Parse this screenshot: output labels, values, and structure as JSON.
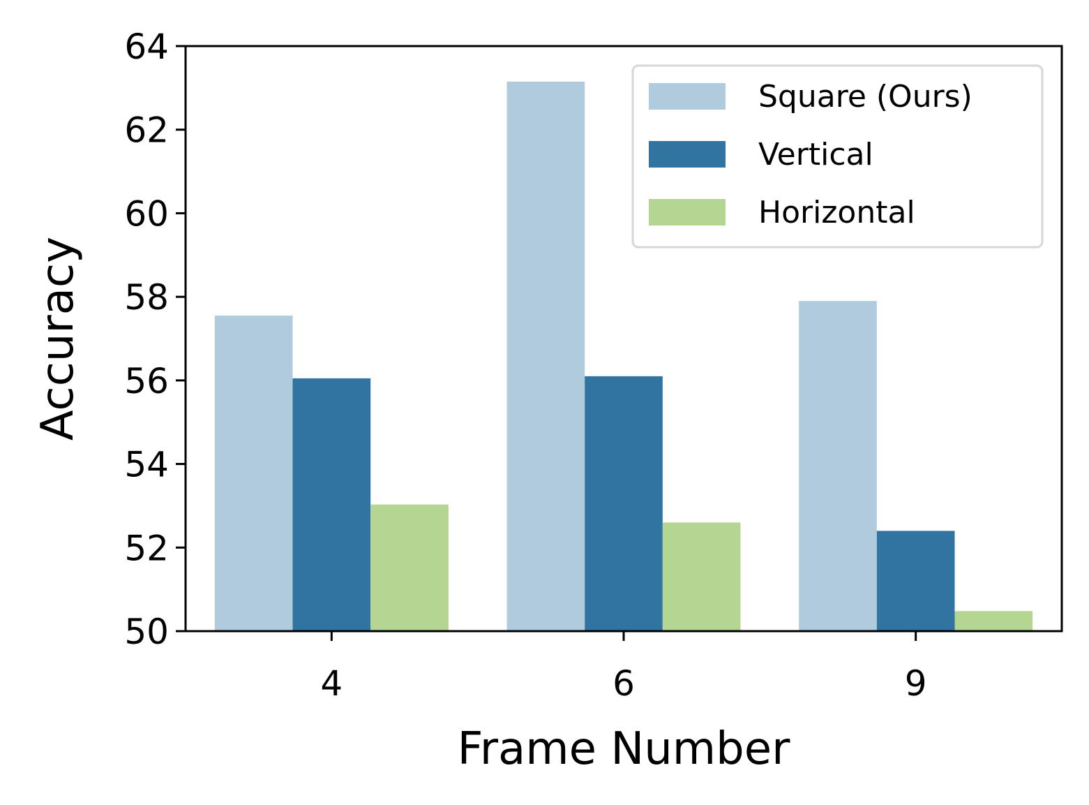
{
  "chart_data": {
    "type": "bar",
    "categories": [
      "4",
      "6",
      "9"
    ],
    "series": [
      {
        "name": "Square (Ours)",
        "values": [
          57.55,
          63.15,
          57.9
        ],
        "color": "#afcbdd"
      },
      {
        "name": "Vertical",
        "values": [
          56.05,
          56.1,
          52.4
        ],
        "color": "#3274a1"
      },
      {
        "name": "Horizontal",
        "values": [
          53.03,
          52.6,
          50.48
        ],
        "color": "#b5d593"
      }
    ],
    "xlabel": "Frame Number",
    "ylabel": "Accuracy",
    "ylim": [
      50,
      64
    ],
    "yticks": [
      50,
      52,
      54,
      56,
      58,
      60,
      62,
      64
    ],
    "legend_position": "top-right",
    "grid": false
  }
}
